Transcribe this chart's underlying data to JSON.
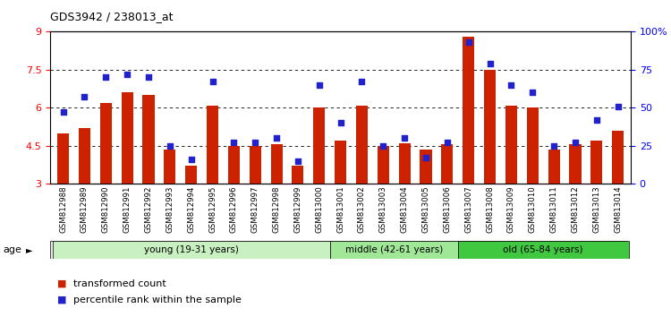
{
  "title": "GDS3942 / 238013_at",
  "samples": [
    "GSM812988",
    "GSM812989",
    "GSM812990",
    "GSM812991",
    "GSM812992",
    "GSM812993",
    "GSM812994",
    "GSM812995",
    "GSM812996",
    "GSM812997",
    "GSM812998",
    "GSM812999",
    "GSM813000",
    "GSM813001",
    "GSM813002",
    "GSM813003",
    "GSM813004",
    "GSM813005",
    "GSM813006",
    "GSM813007",
    "GSM813008",
    "GSM813009",
    "GSM813010",
    "GSM813011",
    "GSM813012",
    "GSM813013",
    "GSM813014"
  ],
  "bar_values": [
    5.0,
    5.2,
    6.2,
    6.6,
    6.5,
    4.35,
    3.7,
    6.1,
    4.5,
    4.5,
    4.55,
    3.7,
    6.0,
    4.7,
    6.1,
    4.5,
    4.6,
    4.35,
    4.55,
    8.8,
    7.5,
    6.1,
    6.0,
    4.35,
    4.55,
    4.7,
    5.1
  ],
  "dot_values": [
    47,
    57,
    70,
    72,
    70,
    25,
    16,
    67,
    27,
    27,
    30,
    15,
    65,
    40,
    67,
    25,
    30,
    17,
    27,
    93,
    79,
    65,
    60,
    25,
    27,
    42,
    51
  ],
  "groups": [
    {
      "label": "young (19-31 years)",
      "start": 0,
      "end": 13,
      "color": "#c8f0c0"
    },
    {
      "label": "middle (42-61 years)",
      "start": 13,
      "end": 19,
      "color": "#a0e898"
    },
    {
      "label": "old (65-84 years)",
      "start": 19,
      "end": 27,
      "color": "#40c840"
    }
  ],
  "ylim_left": [
    3,
    9
  ],
  "ylim_right": [
    0,
    100
  ],
  "yticks_left": [
    3,
    4.5,
    6,
    7.5,
    9
  ],
  "yticks_right": [
    0,
    25,
    50,
    75,
    100
  ],
  "ytick_labels_right": [
    "0",
    "25",
    "50",
    "75",
    "100%"
  ],
  "bar_color": "#cc2200",
  "dot_color": "#2222cc",
  "legend_items": [
    {
      "label": "transformed count",
      "color": "#cc2200"
    },
    {
      "label": "percentile rank within the sample",
      "color": "#2222cc"
    }
  ]
}
